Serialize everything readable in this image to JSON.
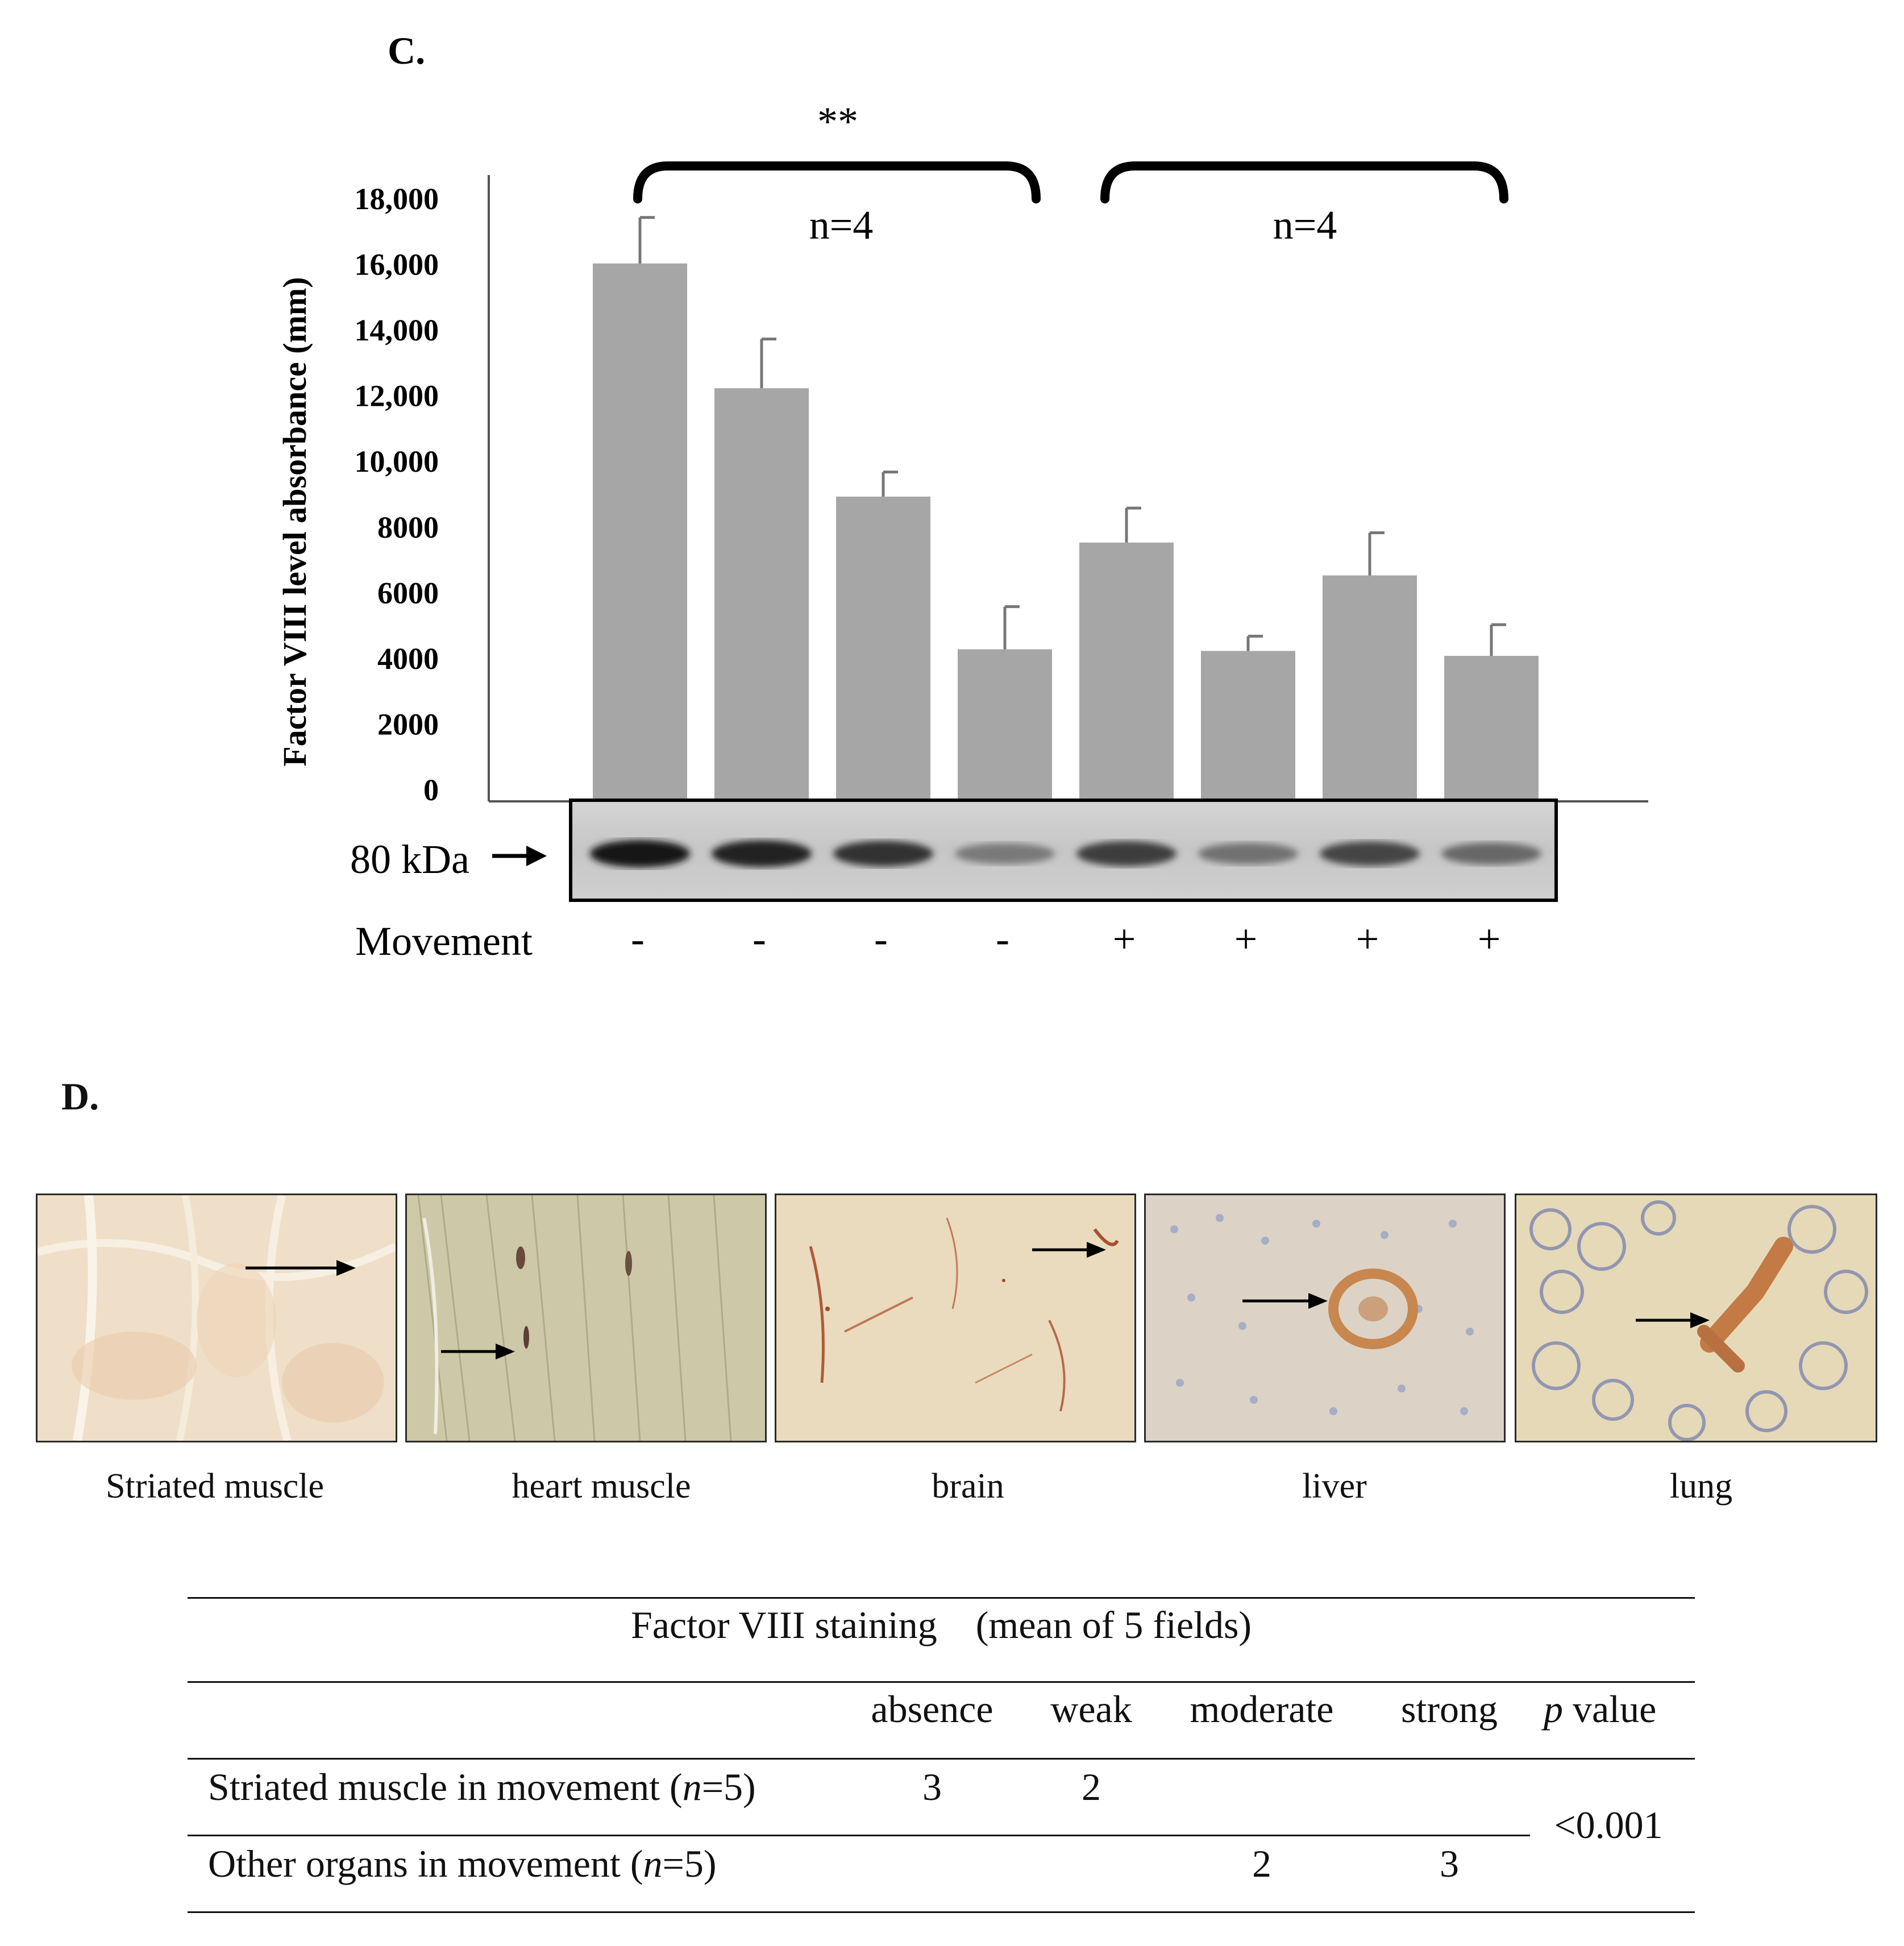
{
  "panel_c": {
    "label": "C.",
    "significance": "**",
    "group_labels": [
      "n=4",
      "n=4"
    ],
    "blot_marker": "80 kDa",
    "movement_label": "Movement",
    "movement_signs": [
      "-",
      "-",
      "-",
      "-",
      "+",
      "+",
      "+",
      "+"
    ]
  },
  "chart_data": {
    "type": "bar",
    "title": "",
    "xlabel": "",
    "ylabel": "Factor VIII level absorbance (mm)",
    "ylim": [
      0,
      18000
    ],
    "yticks": [
      0,
      2000,
      4000,
      6000,
      8000,
      10000,
      12000,
      14000,
      16000,
      18000
    ],
    "ytick_labels": [
      "0",
      "2000",
      "4000",
      "6000",
      "8000",
      "10,000",
      "12,000",
      "14,000",
      "16,000",
      "18,000"
    ],
    "categories": [
      "-",
      "-",
      "-",
      "-",
      "+",
      "+",
      "+",
      "+"
    ],
    "values": [
      16000,
      12200,
      8900,
      4250,
      7500,
      4200,
      6500,
      4050
    ],
    "errors": [
      1400,
      1500,
      750,
      1300,
      1050,
      450,
      1300,
      950
    ],
    "bar_color": "#a6a6a6",
    "grid": false,
    "legend": "none"
  },
  "blot": {
    "band_intensity": [
      1.0,
      0.95,
      0.85,
      0.45,
      0.8,
      0.5,
      0.75,
      0.55
    ]
  },
  "panel_d": {
    "label": "D.",
    "images": [
      {
        "label": "Striated muscle"
      },
      {
        "label": "heart muscle"
      },
      {
        "label": "brain"
      },
      {
        "label": "liver"
      },
      {
        "label": "lung"
      }
    ]
  },
  "table": {
    "title": "Factor VIII staining    (mean of 5 fields)",
    "headers": [
      "absence",
      "weak",
      "moderate",
      "strong"
    ],
    "p_header_italic": "p",
    "p_header_rest": " value",
    "rows": [
      {
        "label_pre": "Striated muscle in movement (",
        "label_n": "n",
        "label_post": "=5)",
        "absence": "3",
        "weak": "2",
        "moderate": "",
        "strong": ""
      },
      {
        "label_pre": "Other organs in movement (",
        "label_n": "n",
        "label_post": "=5)",
        "absence": "",
        "weak": "",
        "moderate": "2",
        "strong": "3"
      }
    ],
    "p_value": "<0.001"
  }
}
